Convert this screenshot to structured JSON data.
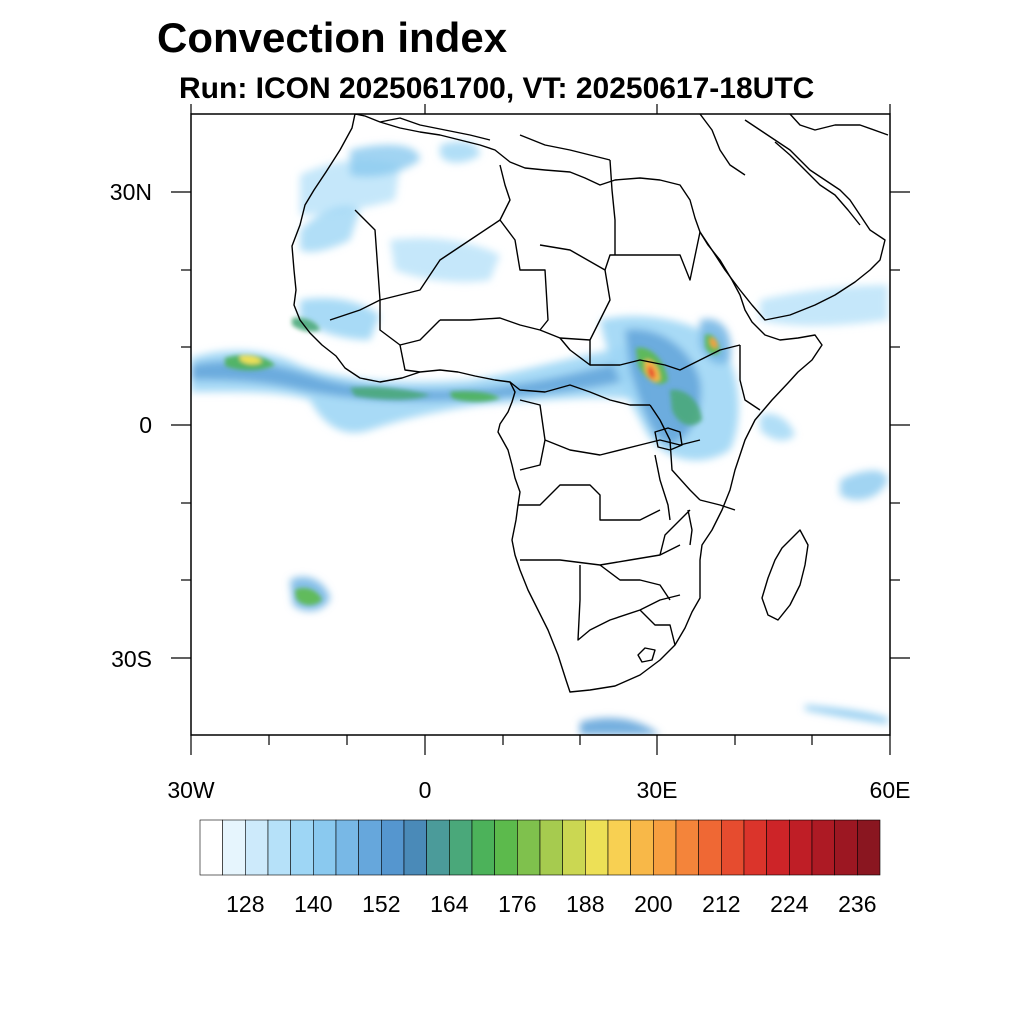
{
  "title": "Convection index",
  "subtitle": "Run: ICON 2025061700,  VT: 20250617-18UTC",
  "axes": {
    "lon_range": [
      -30,
      60
    ],
    "lat_range": [
      -40,
      40
    ],
    "x_labels": [
      "30W",
      "0",
      "30E",
      "60E"
    ],
    "y_labels": [
      "30N",
      "0",
      "30S"
    ]
  },
  "colorbar": {
    "colors": [
      "#ffffff",
      "#e6f5fd",
      "#cdeafb",
      "#b6e1f9",
      "#9ed6f5",
      "#8ac9ef",
      "#78b8e6",
      "#66a7dc",
      "#5596cf",
      "#4a8ab8",
      "#4b9b9a",
      "#4aa87a",
      "#4cb25a",
      "#5cba4c",
      "#7fc14d",
      "#a6cb4f",
      "#cbd752",
      "#ede056",
      "#f8d052",
      "#f8b848",
      "#f79f40",
      "#f4843a",
      "#ef6834",
      "#e64c2f",
      "#db342b",
      "#cd2428",
      "#bf1e26",
      "#ad1a24",
      "#9c1722",
      "#8a1620"
    ],
    "tick_labels": [
      "128",
      "140",
      "152",
      "164",
      "176",
      "188",
      "200",
      "212",
      "224",
      "236"
    ]
  }
}
